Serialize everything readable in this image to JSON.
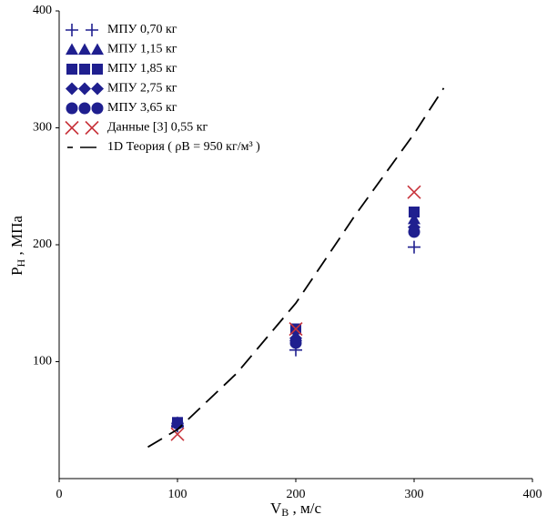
{
  "chart_data": {
    "type": "scatter",
    "xlabel": {
      "main": "V",
      "sub": "B",
      "unit": " , м/с"
    },
    "ylabel": {
      "main": "P",
      "sub": "H",
      "unit": " , МПа"
    },
    "xlim": [
      0,
      400
    ],
    "xticks": [
      0,
      100,
      200,
      300,
      400
    ],
    "ylim": [
      0,
      400
    ],
    "yticks": [
      100,
      200,
      300,
      400
    ],
    "legend": "upper left",
    "series": [
      {
        "name": "МПУ 0,70 кг",
        "marker": "plus",
        "color": "#1f1f8f",
        "x": [
          100,
          200,
          300
        ],
        "values": [
          45,
          110,
          198
        ]
      },
      {
        "name": "МПУ 1,15 кг",
        "marker": "triangle",
        "color": "#1f1f8f",
        "x": [
          100,
          200,
          300
        ],
        "values": [
          48,
          122,
          222
        ]
      },
      {
        "name": "МПУ 1,85 кг",
        "marker": "square",
        "color": "#1f1f8f",
        "x": [
          100,
          200,
          300
        ],
        "values": [
          48,
          128,
          228
        ]
      },
      {
        "name": "МПУ 2,75 кг",
        "marker": "diamond",
        "color": "#1f1f8f",
        "x": [
          100,
          200,
          300
        ],
        "values": [
          47,
          120,
          215
        ]
      },
      {
        "name": "МПУ 3,65 кг",
        "marker": "circle",
        "color": "#1f1f8f",
        "x": [
          100,
          200,
          300
        ],
        "values": [
          47,
          116,
          211
        ]
      },
      {
        "name": "Данные [3]  0,55 кг",
        "marker": "x",
        "color": "#c8343c",
        "x": [
          100,
          200,
          300
        ],
        "values": [
          38,
          128,
          245
        ]
      },
      {
        "name": "1D Теория ( ρB = 950  кг/м³ )",
        "marker": "dash",
        "color": "#000000",
        "x": [
          75,
          100,
          150,
          200,
          250,
          300,
          325
        ],
        "values": [
          27,
          42,
          90,
          150,
          225,
          295,
          334
        ]
      }
    ]
  }
}
